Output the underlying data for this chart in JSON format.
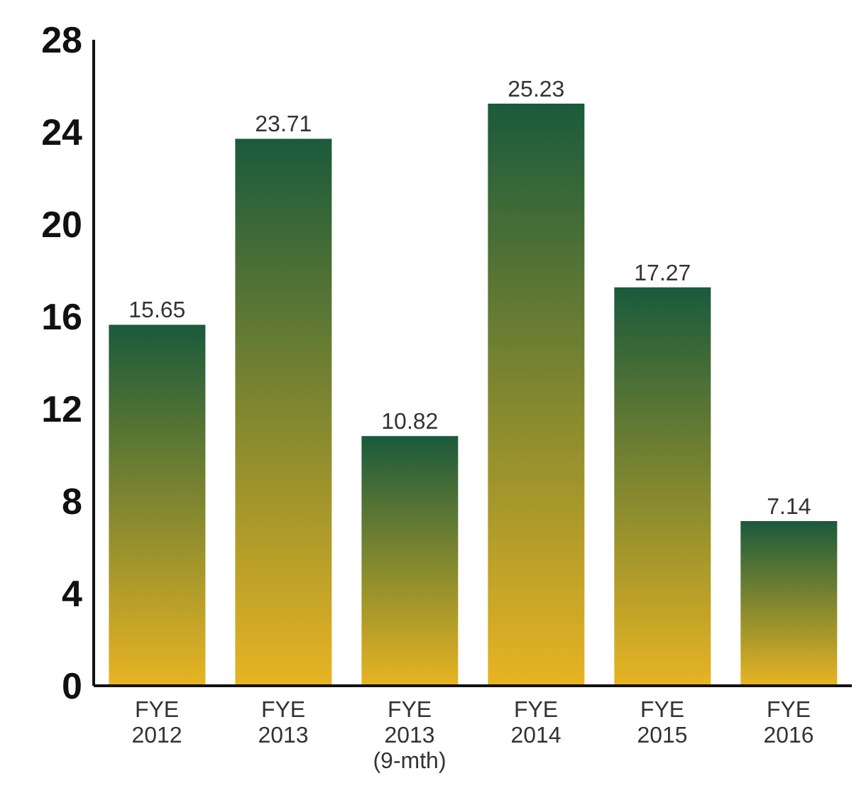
{
  "chart_data": {
    "type": "bar",
    "categories": [
      "FYE\n2012",
      "FYE\n2013",
      "FYE\n2013\n(9-mth)",
      "FYE\n2014",
      "FYE\n2015",
      "FYE\n2016"
    ],
    "values": [
      15.65,
      23.71,
      10.82,
      25.23,
      17.27,
      7.14
    ],
    "color": "#1a5a3c",
    "ylim": [
      0,
      28
    ],
    "yticks": [
      0,
      4,
      8,
      12,
      16,
      20,
      24,
      28
    ],
    "grid": false,
    "data_labels": true
  }
}
